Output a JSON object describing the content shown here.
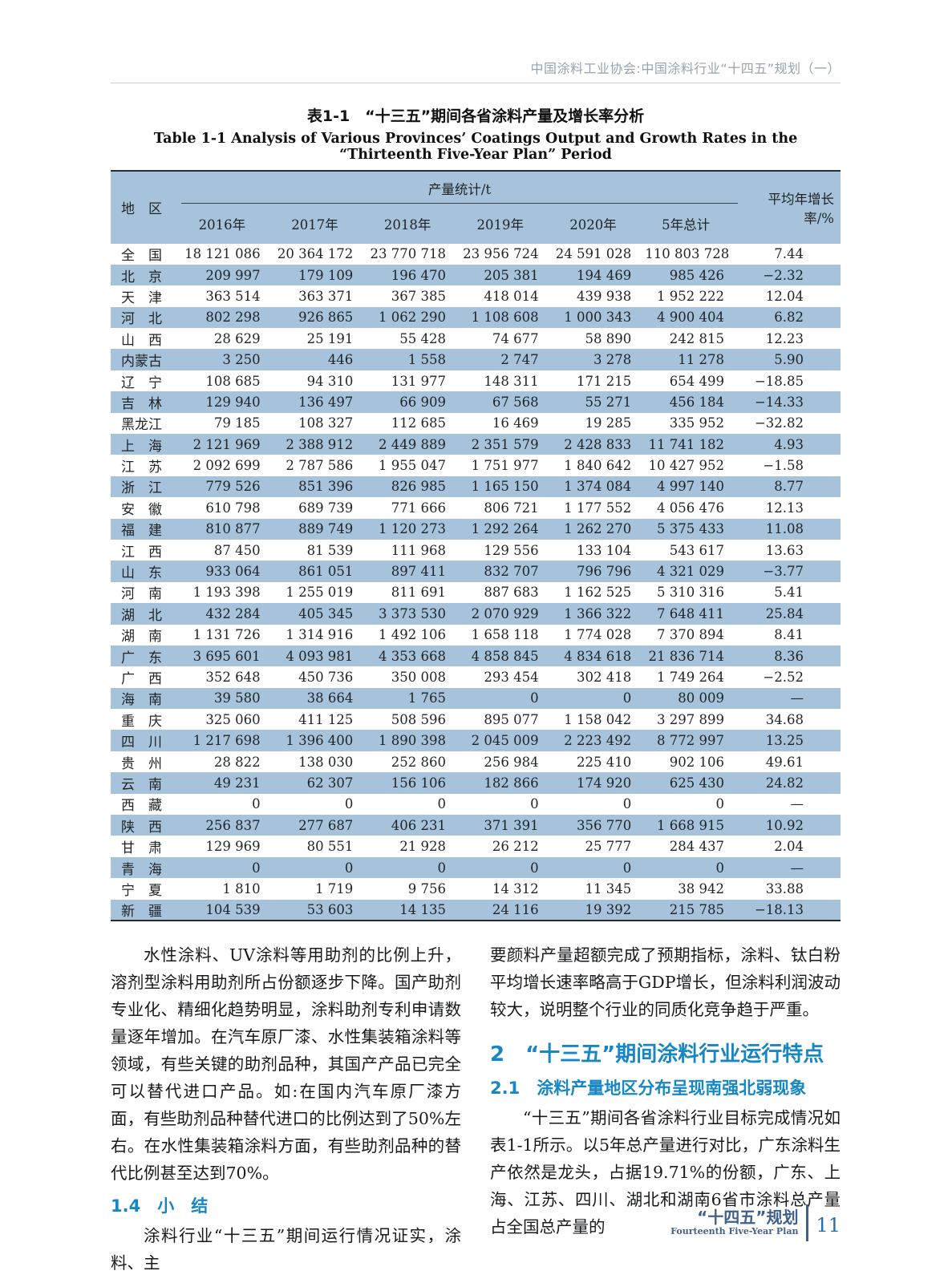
{
  "header": {
    "text": "中国涂料工业协会:中国涂料行业“十四五”规划（一）"
  },
  "table": {
    "title_zh": "表1-1　“十三五”期间各省涂料产量及增长率分析",
    "title_en": "Table 1-1   Analysis of Various Provinces’ Coatings Output and Growth Rates in the “Thirteenth Five-Year Plan” Period",
    "col_region": "地　区",
    "col_output": "产量统计/t",
    "col_growth": "平均年增长率/%",
    "years": [
      "2016年",
      "2017年",
      "2018年",
      "2019年",
      "2020年",
      "5年总计"
    ],
    "rows": [
      {
        "region": "全　国",
        "values": [
          "18 121 086",
          "20 364 172",
          "23 770 718",
          "23 956 724",
          "24 591 028",
          "110 803 728"
        ],
        "growth": "7.44"
      },
      {
        "region": "北　京",
        "values": [
          "209 997",
          "179 109",
          "196 470",
          "205 381",
          "194 469",
          "985 426"
        ],
        "growth": "−2.32"
      },
      {
        "region": "天　津",
        "values": [
          "363 514",
          "363 371",
          "367 385",
          "418 014",
          "439 938",
          "1 952 222"
        ],
        "growth": "12.04"
      },
      {
        "region": "河　北",
        "values": [
          "802 298",
          "926 865",
          "1 062 290",
          "1 108 608",
          "1 000 343",
          "4 900 404"
        ],
        "growth": "6.82"
      },
      {
        "region": "山　西",
        "values": [
          "28 629",
          "25 191",
          "55 428",
          "74 677",
          "58 890",
          "242 815"
        ],
        "growth": "12.23"
      },
      {
        "region": "内蒙古",
        "values": [
          "3 250",
          "446",
          "1 558",
          "2 747",
          "3 278",
          "11 278"
        ],
        "growth": "5.90"
      },
      {
        "region": "辽　宁",
        "values": [
          "108 685",
          "94 310",
          "131 977",
          "148 311",
          "171 215",
          "654 499"
        ],
        "growth": "−18.85"
      },
      {
        "region": "吉　林",
        "values": [
          "129 940",
          "136 497",
          "66 909",
          "67 568",
          "55 271",
          "456 184"
        ],
        "growth": "−14.33"
      },
      {
        "region": "黑龙江",
        "values": [
          "79 185",
          "108 327",
          "112 685",
          "16 469",
          "19 285",
          "335 952"
        ],
        "growth": "−32.82"
      },
      {
        "region": "上　海",
        "values": [
          "2 121 969",
          "2 388 912",
          "2 449 889",
          "2 351 579",
          "2 428 833",
          "11 741 182"
        ],
        "growth": "4.93"
      },
      {
        "region": "江　苏",
        "values": [
          "2 092 699",
          "2 787 586",
          "1 955 047",
          "1 751 977",
          "1 840 642",
          "10 427 952"
        ],
        "growth": "−1.58"
      },
      {
        "region": "浙　江",
        "values": [
          "779 526",
          "851 396",
          "826 985",
          "1 165 150",
          "1 374 084",
          "4 997 140"
        ],
        "growth": "8.77"
      },
      {
        "region": "安　徽",
        "values": [
          "610 798",
          "689 739",
          "771 666",
          "806 721",
          "1 177 552",
          "4 056 476"
        ],
        "growth": "12.13"
      },
      {
        "region": "福　建",
        "values": [
          "810 877",
          "889 749",
          "1 120 273",
          "1 292 264",
          "1 262 270",
          "5 375 433"
        ],
        "growth": "11.08"
      },
      {
        "region": "江　西",
        "values": [
          "87 450",
          "81 539",
          "111 968",
          "129 556",
          "133 104",
          "543 617"
        ],
        "growth": "13.63"
      },
      {
        "region": "山　东",
        "values": [
          "933 064",
          "861 051",
          "897 411",
          "832 707",
          "796 796",
          "4 321 029"
        ],
        "growth": "−3.77"
      },
      {
        "region": "河　南",
        "values": [
          "1 193 398",
          "1 255 019",
          "811 691",
          "887 683",
          "1 162 525",
          "5 310 316"
        ],
        "growth": "5.41"
      },
      {
        "region": "湖　北",
        "values": [
          "432 284",
          "405 345",
          "3 373 530",
          "2 070 929",
          "1 366 322",
          "7 648 411"
        ],
        "growth": "25.84"
      },
      {
        "region": "湖　南",
        "values": [
          "1 131 726",
          "1 314 916",
          "1 492 106",
          "1 658 118",
          "1 774 028",
          "7 370 894"
        ],
        "growth": "8.41"
      },
      {
        "region": "广　东",
        "values": [
          "3 695 601",
          "4 093 981",
          "4 353 668",
          "4 858 845",
          "4 834 618",
          "21 836 714"
        ],
        "growth": "8.36"
      },
      {
        "region": "广　西",
        "values": [
          "352 648",
          "450 736",
          "350 008",
          "293 454",
          "302 418",
          "1 749 264"
        ],
        "growth": "−2.52"
      },
      {
        "region": "海　南",
        "values": [
          "39 580",
          "38 664",
          "1 765",
          "0",
          "0",
          "80 009"
        ],
        "growth": "—"
      },
      {
        "region": "重　庆",
        "values": [
          "325 060",
          "411 125",
          "508 596",
          "895 077",
          "1 158 042",
          "3 297 899"
        ],
        "growth": "34.68"
      },
      {
        "region": "四　川",
        "values": [
          "1 217 698",
          "1 396 400",
          "1 890 398",
          "2 045 009",
          "2 223 492",
          "8 772 997"
        ],
        "growth": "13.25"
      },
      {
        "region": "贵　州",
        "values": [
          "28 822",
          "138 030",
          "252 860",
          "256 984",
          "225 410",
          "902 106"
        ],
        "growth": "49.61"
      },
      {
        "region": "云　南",
        "values": [
          "49 231",
          "62 307",
          "156 106",
          "182 866",
          "174 920",
          "625 430"
        ],
        "growth": "24.82"
      },
      {
        "region": "西　藏",
        "values": [
          "0",
          "0",
          "0",
          "0",
          "0",
          "0"
        ],
        "growth": "—"
      },
      {
        "region": "陕　西",
        "values": [
          "256 837",
          "277 687",
          "406 231",
          "371 391",
          "356 770",
          "1 668 915"
        ],
        "growth": "10.92"
      },
      {
        "region": "甘　肃",
        "values": [
          "129 969",
          "80 551",
          "21 928",
          "26 212",
          "25 777",
          "284 437"
        ],
        "growth": "2.04"
      },
      {
        "region": "青　海",
        "values": [
          "0",
          "0",
          "0",
          "0",
          "0",
          "0"
        ],
        "growth": "—"
      },
      {
        "region": "宁　夏",
        "values": [
          "1 810",
          "1 719",
          "9 756",
          "14 312",
          "11 345",
          "38 942"
        ],
        "growth": "33.88"
      },
      {
        "region": "新　疆",
        "values": [
          "104 539",
          "53 603",
          "14 135",
          "24 116",
          "19 392",
          "215 785"
        ],
        "growth": "−18.13"
      }
    ]
  },
  "left_column": {
    "para1": "水性涂料、UV涂料等用助剂的比例上升，溶剂型涂料用助剂所占份额逐步下降。国产助剂专业化、精细化趋势明显，涂料助剂专利申请数量逐年增加。在汽车原厂漆、水性集装箱涂料等领域，有些关键的助剂品种，其国产产品已完全可以替代进口产品。如:在国内汽车原厂漆方面，有些助剂品种替代进口的比例达到了50%左右。在水性集装箱涂料方面，有些助剂品种的替代比例甚至达到70%。",
    "heading": "1.4　小　结",
    "para2": "涂料行业“十三五”期间运行情况证实，涂料、主"
  },
  "right_column": {
    "para1": "要颜料产量超额完成了预期指标，涂料、钛白粉平均增长速率略高于GDP增长，但涂料利润波动较大，说明整个行业的同质化竞争趋于严重。",
    "heading2": "2　“十三五”期间涂料行业运行特点",
    "heading21": "2.1　涂料产量地区分布呈现南强北弱现象",
    "para2": "“十三五”期间各省涂料行业目标完成情况如表1-1所示。以5年总产量进行对比，广东涂料生产依然是龙头，占据19.71%的份额，广东、上海、江苏、四川、湖北和湖南6省市涂料总产量占全国总产量的"
  },
  "footer": {
    "brand_zh": "“十四五”规划",
    "brand_en": "Fourteenth Five-Year Plan",
    "page_number": "11"
  },
  "colors": {
    "row_blue": "#a6c3db",
    "heading_blue": "#1787c3",
    "footer_slate": "#41608c",
    "page_number_blue": "#2c6ca8"
  }
}
